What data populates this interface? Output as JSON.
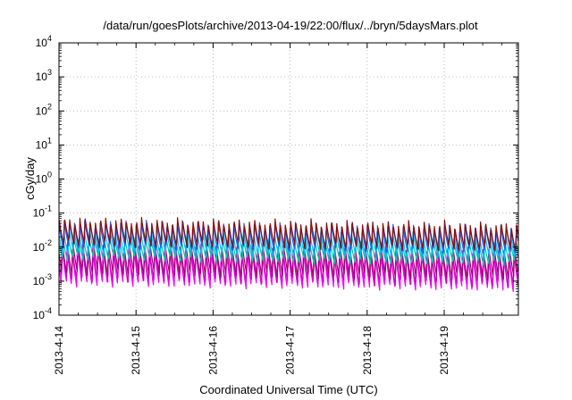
{
  "chart_data": {
    "type": "line",
    "title": "/data/run/goesPlots/archive/2013-04-19/22:00/flux/../bryn/5daysMars.plot",
    "xlabel": "Coordinated Universal Time (UTC)",
    "ylabel": "cGy/day",
    "y_scale": "log",
    "ylim": [
      0.0001,
      10000
    ],
    "xlim_days": [
      "2013-4-14",
      "2013-4-20"
    ],
    "grid": true,
    "x_tick_labels": [
      "2013-4-14",
      "2013-4-15",
      "2013-4-16",
      "2013-4-17",
      "2013-4-18",
      "2013-4-19"
    ],
    "y_tick_labels": [
      {
        "base": "10",
        "exp": "-4"
      },
      {
        "base": "10",
        "exp": "-3"
      },
      {
        "base": "10",
        "exp": "-2"
      },
      {
        "base": "10",
        "exp": "-1"
      },
      {
        "base": "10",
        "exp": "0"
      },
      {
        "base": "10",
        "exp": "1"
      },
      {
        "base": "10",
        "exp": "2"
      },
      {
        "base": "10",
        "exp": "3"
      },
      {
        "base": "10",
        "exp": "4"
      }
    ],
    "pattern": {
      "period_hours": 1.6,
      "note": "repeating sawtooth: sharp rise then decay each orbit"
    },
    "series": [
      {
        "color": "#ff00ff",
        "peak": 0.013,
        "trough": 0.0008,
        "phase": 0.55
      },
      {
        "color": "#cc00cc",
        "peak": 0.011,
        "trough": 0.0011,
        "phase": 0.5
      },
      {
        "color": "#a0006e",
        "peak": 0.016,
        "trough": 0.0017,
        "phase": 0.45
      },
      {
        "color": "#00ccaa",
        "peak": 0.022,
        "trough": 0.0045,
        "phase": 0.3
      },
      {
        "color": "#00c0ff",
        "peak": 0.035,
        "trough": 0.0065,
        "phase": 0.2
      },
      {
        "color": "#1f5fff",
        "peak": 0.06,
        "trough": 0.01,
        "phase": 0.1
      },
      {
        "color": "#8b0a0a",
        "peak": 0.07,
        "trough": 0.012,
        "phase": 0.05
      }
    ]
  }
}
